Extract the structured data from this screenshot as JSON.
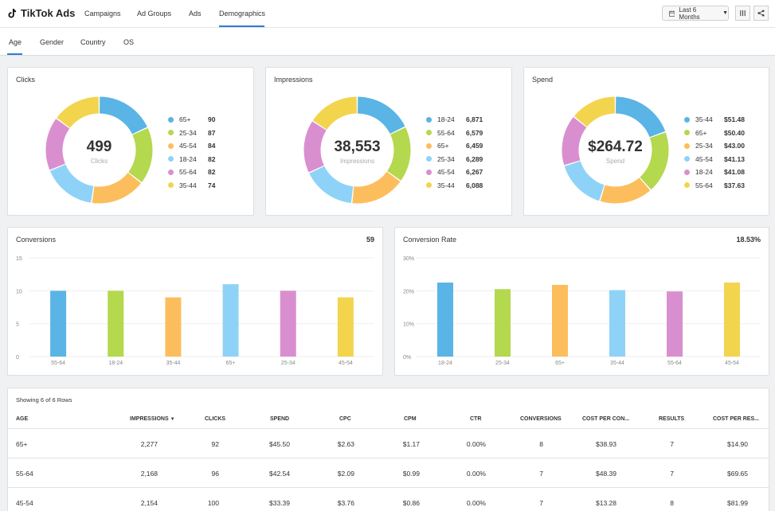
{
  "app": {
    "title": "TikTok Ads",
    "nav_tabs": [
      "Campaigns",
      "Ad Groups",
      "Ads",
      "Demographics"
    ],
    "active_nav": "Demographics",
    "date_range": "Last 6 Months"
  },
  "subtabs": [
    "Age",
    "Gender",
    "Country",
    "OS"
  ],
  "active_subtab": "Age",
  "donuts": [
    {
      "title": "Clicks",
      "total": "499",
      "sub": "Clicks",
      "legend": [
        {
          "label": "65+",
          "value": "90",
          "num": 90,
          "color": "#5ab4e5"
        },
        {
          "label": "25-34",
          "value": "87",
          "num": 87,
          "color": "#b4d84e"
        },
        {
          "label": "45-54",
          "value": "84",
          "num": 84,
          "color": "#fcbe5c"
        },
        {
          "label": "18-24",
          "value": "82",
          "num": 82,
          "color": "#8ed3f7"
        },
        {
          "label": "55-64",
          "value": "82",
          "num": 82,
          "color": "#d98fcf"
        },
        {
          "label": "35-44",
          "value": "74",
          "num": 74,
          "color": "#f3d44d"
        }
      ]
    },
    {
      "title": "Impressions",
      "total": "38,553",
      "sub": "Impressions",
      "legend": [
        {
          "label": "18-24",
          "value": "6,871",
          "num": 6871,
          "color": "#5ab4e5"
        },
        {
          "label": "55-64",
          "value": "6,579",
          "num": 6579,
          "color": "#b4d84e"
        },
        {
          "label": "65+",
          "value": "6,459",
          "num": 6459,
          "color": "#fcbe5c"
        },
        {
          "label": "25-34",
          "value": "6,289",
          "num": 6289,
          "color": "#8ed3f7"
        },
        {
          "label": "45-54",
          "value": "6,267",
          "num": 6267,
          "color": "#d98fcf"
        },
        {
          "label": "35-44",
          "value": "6,088",
          "num": 6088,
          "color": "#f3d44d"
        }
      ]
    },
    {
      "title": "Spend",
      "total": "$264.72",
      "sub": "Spend",
      "legend": [
        {
          "label": "35-44",
          "value": "$51.48",
          "num": 51.48,
          "color": "#5ab4e5"
        },
        {
          "label": "65+",
          "value": "$50.40",
          "num": 50.4,
          "color": "#b4d84e"
        },
        {
          "label": "25-34",
          "value": "$43.00",
          "num": 43.0,
          "color": "#fcbe5c"
        },
        {
          "label": "45-54",
          "value": "$41.13",
          "num": 41.13,
          "color": "#8ed3f7"
        },
        {
          "label": "18-24",
          "value": "$41.08",
          "num": 41.08,
          "color": "#d98fcf"
        },
        {
          "label": "55-64",
          "value": "$37.63",
          "num": 37.63,
          "color": "#f3d44d"
        }
      ]
    }
  ],
  "bar_cards": [
    {
      "title": "Conversions",
      "total": "59"
    },
    {
      "title": "Conversion Rate",
      "total": "18.53%"
    }
  ],
  "chart_data": [
    {
      "type": "bar",
      "title": "Conversions",
      "categories": [
        "55-64",
        "18-24",
        "35-44",
        "65+",
        "25-34",
        "45-54"
      ],
      "values": [
        10,
        10,
        9,
        11,
        10,
        9
      ],
      "yticks": [
        "0",
        "5",
        "10",
        "15"
      ],
      "ylim": [
        0,
        15
      ],
      "colors": [
        "#5ab4e5",
        "#b4d84e",
        "#fcbe5c",
        "#8ed3f7",
        "#d98fcf",
        "#f3d44d"
      ],
      "grid": true
    },
    {
      "type": "bar",
      "title": "Conversion Rate",
      "categories": [
        "18-24",
        "25-34",
        "65+",
        "35-44",
        "55-64",
        "45-54"
      ],
      "values": [
        22.5,
        20.5,
        21.8,
        20.2,
        19.8,
        22.5
      ],
      "yticks": [
        "0%",
        "10%",
        "20%",
        "30%"
      ],
      "ylim": [
        0,
        30
      ],
      "colors": [
        "#5ab4e5",
        "#b4d84e",
        "#fcbe5c",
        "#8ed3f7",
        "#d98fcf",
        "#f3d44d"
      ],
      "grid": true
    }
  ],
  "table": {
    "rows_label": "Showing 6 of 6 Rows",
    "columns": [
      "AGE",
      "IMPRESSIONS",
      "CLICKS",
      "SPEND",
      "CPC",
      "CPM",
      "CTR",
      "CONVERSIONS",
      "COST PER CON...",
      "RESULTS",
      "COST PER RES..."
    ],
    "sort_indicator": "▼",
    "rows": [
      [
        "65+",
        "2,277",
        "92",
        "$45.50",
        "$2.63",
        "$1.17",
        "0.00%",
        "8",
        "$38.93",
        "7",
        "$14.90"
      ],
      [
        "55-64",
        "2,168",
        "96",
        "$42.54",
        "$2.09",
        "$0.99",
        "0.00%",
        "7",
        "$48.39",
        "7",
        "$69.65"
      ],
      [
        "45-54",
        "2,154",
        "100",
        "$33.39",
        "$3.76",
        "$0.86",
        "0.00%",
        "7",
        "$13.28",
        "8",
        "$81.99"
      ]
    ]
  }
}
